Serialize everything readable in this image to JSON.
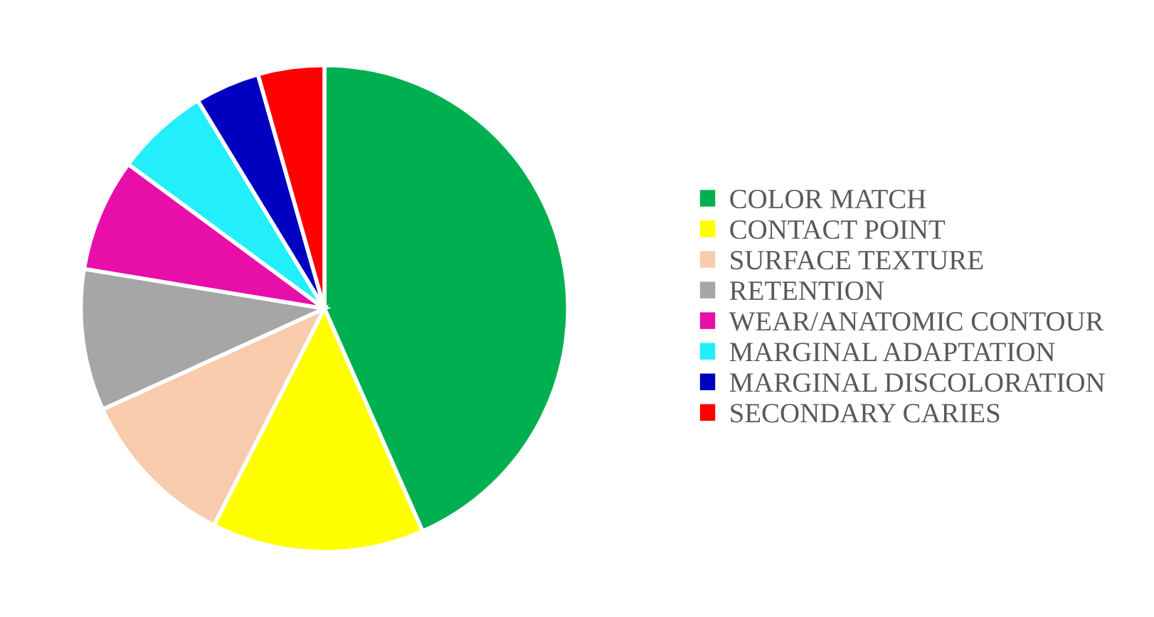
{
  "chart_data": {
    "type": "pie",
    "categories": [
      "COLOR MATCH",
      "CONTACT POINT",
      "SURFACE TEXTURE",
      "RETENTION",
      "WEAR/ANATOMIC CONTOUR",
      "MARGINAL ADAPTATION",
      "MARGINAL DISCOLORATION",
      "SECONDARY CARIES"
    ],
    "values": [
      43.4,
      14.1,
      10.7,
      9.4,
      7.5,
      6.2,
      4.3,
      4.4
    ],
    "colors": [
      "#00b050",
      "#ffff00",
      "#f8cbad",
      "#a6a6a6",
      "#e80eaa",
      "#22eefc",
      "#0000c0",
      "#ff0000"
    ],
    "legend": "right"
  }
}
